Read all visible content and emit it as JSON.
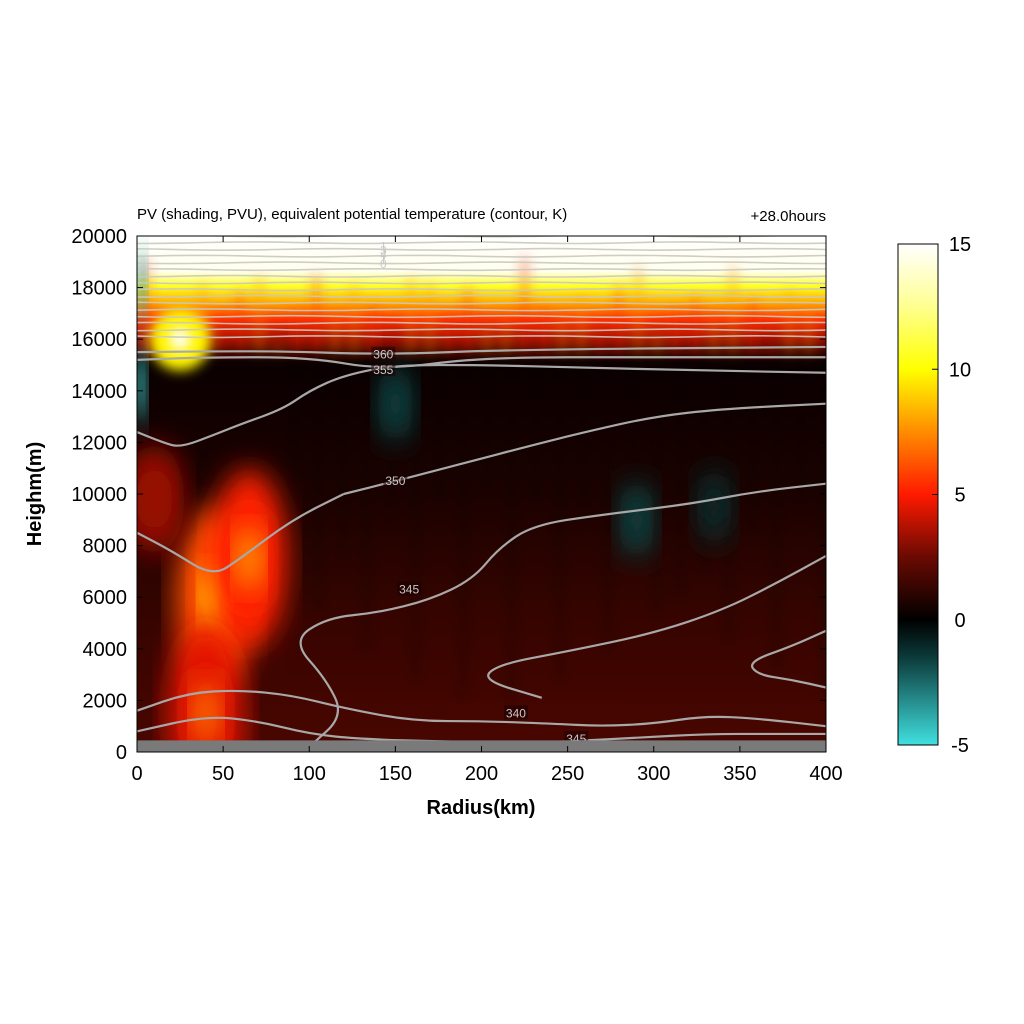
{
  "chart_data": {
    "type": "heatmap",
    "title": "PV (shading, PVU), equivalent potential temperature (contour, K)",
    "time_label": "+28.0hours",
    "xlabel": "Radius(km)",
    "ylabel": "Heighm(m)",
    "xlim": [
      0,
      400
    ],
    "ylim": [
      0,
      20000
    ],
    "x_ticks": [
      0,
      50,
      100,
      150,
      200,
      250,
      300,
      350,
      400
    ],
    "y_ticks": [
      0,
      2000,
      4000,
      6000,
      8000,
      10000,
      12000,
      14000,
      16000,
      18000,
      20000
    ],
    "colorbar": {
      "range": [
        -5,
        15
      ],
      "ticks": [
        -5,
        0,
        5,
        10,
        15
      ],
      "colors": [
        {
          "value": -5,
          "color": "#40e0e0"
        },
        {
          "value": -1.5,
          "color": "#0c3a3a"
        },
        {
          "value": 0,
          "color": "#000000"
        },
        {
          "value": 2.5,
          "color": "#6a0a02"
        },
        {
          "value": 5,
          "color": "#ff1a00"
        },
        {
          "value": 7.5,
          "color": "#ff8c00"
        },
        {
          "value": 10,
          "color": "#ffff00"
        },
        {
          "value": 12.5,
          "color": "#ffff90"
        },
        {
          "value": 15,
          "color": "#ffffff"
        }
      ]
    },
    "pv_features": [
      {
        "r": 45,
        "z": 6000,
        "value": 9.5
      },
      {
        "r": 65,
        "z": 7500,
        "value": 8
      },
      {
        "r": 25,
        "z": 16000,
        "value": 15
      },
      {
        "r": 10,
        "z": 9800,
        "value": 5
      },
      {
        "r": 40,
        "z": 1500,
        "value": 7
      },
      {
        "r": 2,
        "z": 14200,
        "value": -5
      },
      {
        "r": 2,
        "z": 18000,
        "value": -4
      },
      {
        "r": 150,
        "z": 13500,
        "value": -1.5
      },
      {
        "r": 290,
        "z": 9000,
        "value": -1.5
      },
      {
        "r": 335,
        "z": 9500,
        "value": -1.0
      }
    ],
    "contours": [
      {
        "label": "340",
        "label_at": [
          220,
          1500
        ],
        "points": [
          [
            0,
            1600
          ],
          [
            30,
            2300
          ],
          [
            60,
            2400
          ],
          [
            90,
            2200
          ],
          [
            120,
            1700
          ],
          [
            160,
            1200
          ],
          [
            200,
            1200
          ],
          [
            240,
            1100
          ],
          [
            270,
            1000
          ],
          [
            300,
            1100
          ],
          [
            330,
            1400
          ],
          [
            360,
            1300
          ],
          [
            400,
            1000
          ]
        ]
      },
      {
        "label": "345",
        "label_at": [
          255,
          500
        ],
        "points": [
          [
            0,
            800
          ],
          [
            40,
            1400
          ],
          [
            70,
            1200
          ],
          [
            100,
            700
          ],
          [
            130,
            500
          ],
          [
            180,
            400
          ],
          [
            230,
            350
          ],
          [
            260,
            450
          ],
          [
            290,
            550
          ],
          [
            330,
            700
          ],
          [
            370,
            700
          ],
          [
            400,
            700
          ]
        ]
      },
      {
        "label": "",
        "label_at": null,
        "points": [
          [
            235,
            2100
          ],
          [
            200,
            2800
          ],
          [
            210,
            3400
          ],
          [
            250,
            3900
          ],
          [
            300,
            4600
          ],
          [
            340,
            5500
          ],
          [
            370,
            6500
          ],
          [
            400,
            7600
          ]
        ]
      },
      {
        "label": "",
        "label_at": null,
        "points": [
          [
            400,
            4700
          ],
          [
            380,
            4100
          ],
          [
            355,
            3500
          ],
          [
            360,
            3000
          ],
          [
            380,
            2800
          ],
          [
            400,
            2500
          ]
        ]
      },
      {
        "label": "345",
        "label_at": [
          158,
          6300
        ],
        "points": [
          [
            100,
            200
          ],
          [
            120,
            1400
          ],
          [
            110,
            2800
          ],
          [
            90,
            4300
          ],
          [
            110,
            5200
          ],
          [
            140,
            5400
          ],
          [
            170,
            5900
          ],
          [
            195,
            6700
          ],
          [
            210,
            7900
          ],
          [
            230,
            8800
          ],
          [
            270,
            9200
          ],
          [
            320,
            9600
          ],
          [
            360,
            10100
          ],
          [
            400,
            10400
          ]
        ]
      },
      {
        "label": "",
        "label_at": null,
        "points": [
          [
            0,
            8500
          ],
          [
            20,
            7800
          ],
          [
            44,
            6800
          ],
          [
            60,
            7500
          ],
          [
            90,
            9000
          ],
          [
            120,
            10000
          ]
        ]
      },
      {
        "label": "350",
        "label_at": [
          150,
          10500
        ],
        "points": [
          [
            120,
            10000
          ],
          [
            150,
            10500
          ],
          [
            190,
            11200
          ],
          [
            230,
            11900
          ],
          [
            260,
            12400
          ],
          [
            300,
            13000
          ],
          [
            340,
            13300
          ],
          [
            400,
            13500
          ]
        ]
      },
      {
        "label": "",
        "label_at": null,
        "points": [
          [
            0,
            12400
          ],
          [
            15,
            12000
          ],
          [
            25,
            11800
          ],
          [
            45,
            12300
          ],
          [
            60,
            12700
          ],
          [
            85,
            13300
          ],
          [
            100,
            14000
          ],
          [
            120,
            14600
          ],
          [
            150,
            15000
          ],
          [
            200,
            15000
          ],
          [
            260,
            14900
          ],
          [
            320,
            14800
          ],
          [
            400,
            14700
          ]
        ]
      },
      {
        "label": "355",
        "label_at": [
          143,
          14800
        ],
        "points": [
          [
            0,
            15200
          ],
          [
            40,
            15300
          ],
          [
            100,
            15300
          ],
          [
            143,
            14800
          ],
          [
            200,
            15300
          ],
          [
            300,
            15300
          ],
          [
            400,
            15300
          ]
        ]
      },
      {
        "label": "360",
        "label_at": [
          143,
          15400
        ],
        "points": [
          [
            0,
            15500
          ],
          [
            80,
            15550
          ],
          [
            143,
            15400
          ],
          [
            220,
            15600
          ],
          [
            400,
            15700
          ]
        ]
      }
    ],
    "upper_contour_labels": [
      "1",
      "3",
      "4",
      "1",
      "0"
    ]
  }
}
